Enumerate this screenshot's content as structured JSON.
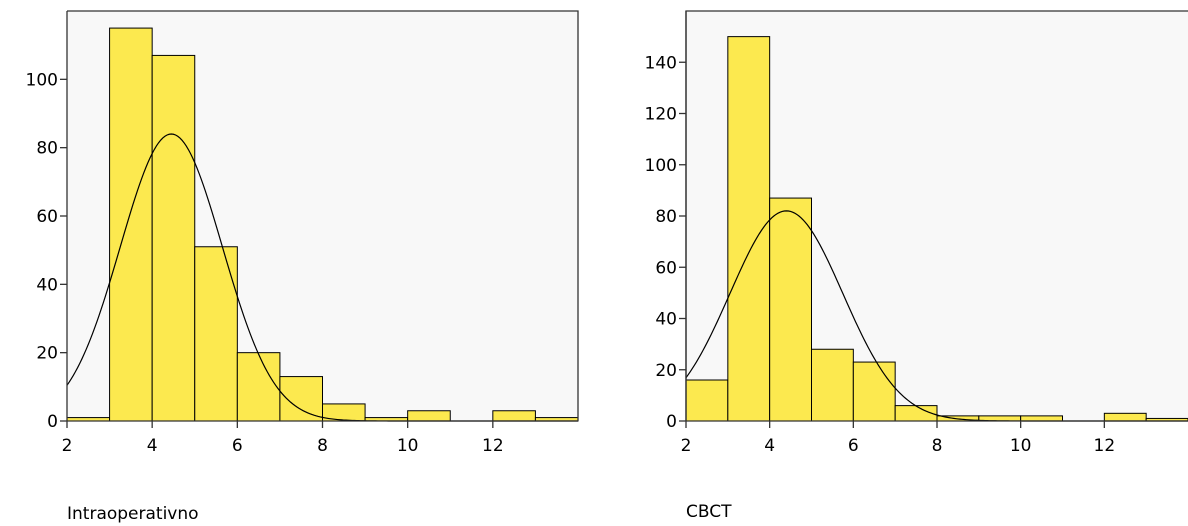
{
  "chart_data": [
    {
      "type": "bar",
      "title": "",
      "xlabel": "Intraoperativno",
      "ylabel": "",
      "xlim": [
        2,
        14
      ],
      "ylim": [
        0,
        120
      ],
      "xticks": [
        "2",
        "4",
        "6",
        "8",
        "10",
        "12"
      ],
      "yticks": [
        "0",
        "20",
        "40",
        "60",
        "80",
        "100"
      ],
      "bin_width": 1,
      "bins": [
        {
          "x0": 2,
          "x1": 3,
          "value": 1
        },
        {
          "x0": 3,
          "x1": 4,
          "value": 115
        },
        {
          "x0": 4,
          "x1": 5,
          "value": 107
        },
        {
          "x0": 5,
          "x1": 6,
          "value": 51
        },
        {
          "x0": 6,
          "x1": 7,
          "value": 20
        },
        {
          "x0": 7,
          "x1": 8,
          "value": 13
        },
        {
          "x0": 8,
          "x1": 9,
          "value": 5
        },
        {
          "x0": 9,
          "x1": 10,
          "value": 1
        },
        {
          "x0": 10,
          "x1": 11,
          "value": 3
        },
        {
          "x0": 11,
          "x1": 12,
          "value": 0
        },
        {
          "x0": 12,
          "x1": 13,
          "value": 3
        },
        {
          "x0": 13,
          "x1": 14,
          "value": 1
        }
      ],
      "normal_curve": {
        "mean": 4.45,
        "sd": 1.2,
        "peak": 84
      },
      "bar_color": "#fce94f",
      "background_color": "#f8f8f8",
      "grid": false
    },
    {
      "type": "bar",
      "title": "",
      "xlabel": "CBCT",
      "ylabel": "",
      "xlim": [
        2,
        14
      ],
      "ylim": [
        0,
        160
      ],
      "xticks": [
        "2",
        "4",
        "6",
        "8",
        "10",
        "12"
      ],
      "yticks": [
        "0",
        "20",
        "40",
        "60",
        "80",
        "100",
        "120",
        "140"
      ],
      "bin_width": 1,
      "bins": [
        {
          "x0": 2,
          "x1": 3,
          "value": 16
        },
        {
          "x0": 3,
          "x1": 4,
          "value": 150
        },
        {
          "x0": 4,
          "x1": 5,
          "value": 87
        },
        {
          "x0": 5,
          "x1": 6,
          "value": 28
        },
        {
          "x0": 6,
          "x1": 7,
          "value": 23
        },
        {
          "x0": 7,
          "x1": 8,
          "value": 6
        },
        {
          "x0": 8,
          "x1": 9,
          "value": 2
        },
        {
          "x0": 9,
          "x1": 10,
          "value": 2
        },
        {
          "x0": 10,
          "x1": 11,
          "value": 2
        },
        {
          "x0": 11,
          "x1": 12,
          "value": 0
        },
        {
          "x0": 12,
          "x1": 13,
          "value": 3
        },
        {
          "x0": 13,
          "x1": 14,
          "value": 1
        }
      ],
      "normal_curve": {
        "mean": 4.4,
        "sd": 1.35,
        "peak": 82
      },
      "bar_color": "#fce94f",
      "background_color": "#f8f8f8",
      "grid": false
    }
  ]
}
